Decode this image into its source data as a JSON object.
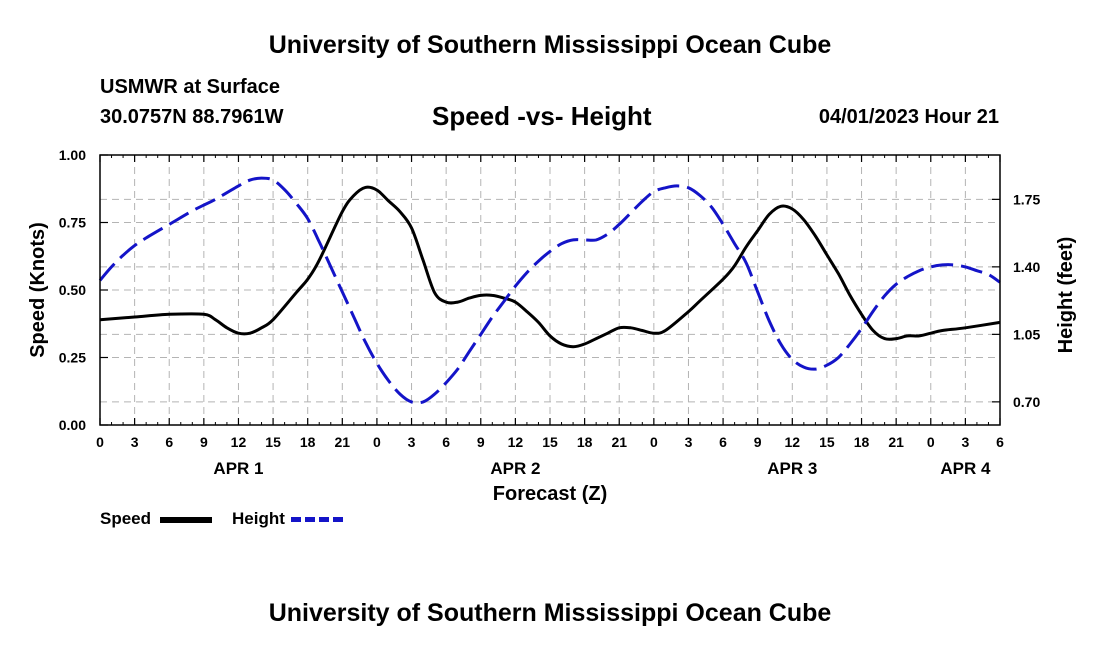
{
  "header": {
    "title": "University of Southern Mississippi Ocean Cube",
    "station": "USMWR at Surface",
    "coords": "30.0757N  88.7961W",
    "subtitle": "Speed -vs- Height",
    "datetime": "04/01/2023 Hour 21"
  },
  "footer": {
    "title": "University of Southern Mississippi Ocean Cube"
  },
  "legend": {
    "speed_label": "Speed",
    "height_label": "Height"
  },
  "colors": {
    "speed": "#000000",
    "height": "#1414c8",
    "grid": "#b4b4b4"
  },
  "chart_data": {
    "type": "line",
    "xlabel": "Forecast (Z)",
    "ylabel_left": "Speed (Knots)",
    "ylabel_right": "Height (feet)",
    "x_unit": "hours from APR 1 00Z",
    "xlim": [
      0,
      78
    ],
    "ylim_left": [
      0,
      1
    ],
    "ylim_right": [
      0.58,
      1.98
    ],
    "x_ticks": [
      0,
      3,
      6,
      9,
      12,
      15,
      18,
      21,
      24,
      27,
      30,
      33,
      36,
      39,
      42,
      45,
      48,
      51,
      54,
      57,
      60,
      63,
      66,
      69,
      72,
      75,
      78
    ],
    "x_tick_labels": [
      "0",
      "3",
      "6",
      "9",
      "12",
      "15",
      "18",
      "21",
      "0",
      "3",
      "6",
      "9",
      "12",
      "15",
      "18",
      "21",
      "0",
      "3",
      "6",
      "9",
      "12",
      "15",
      "18",
      "21",
      "0",
      "3",
      "6"
    ],
    "y_ticks_left": [
      0,
      0.25,
      0.5,
      0.75,
      1
    ],
    "y_tick_labels_left": [
      "0.00",
      "0.25",
      "0.50",
      "0.75",
      "1.00"
    ],
    "y_ticks_right": [
      0.7,
      1.05,
      1.4,
      1.75
    ],
    "y_tick_labels_right": [
      "0.70",
      "1.05",
      "1.40",
      "1.75"
    ],
    "day_labels": [
      {
        "x": 12,
        "label": "APR 1"
      },
      {
        "x": 36,
        "label": "APR 2"
      },
      {
        "x": 60,
        "label": "APR 3"
      },
      {
        "x": 75,
        "label": "APR 4"
      }
    ],
    "grid": true,
    "series": [
      {
        "name": "Speed",
        "axis": "left",
        "style": "solid",
        "x": [
          0,
          3,
          6,
          9,
          10,
          11,
          12,
          13,
          14,
          15,
          17,
          18,
          19,
          21,
          22,
          23,
          24,
          25,
          26,
          27,
          28,
          29,
          30,
          31,
          32,
          33,
          34,
          35,
          36,
          37,
          38,
          39,
          40,
          41,
          42,
          43,
          44,
          45,
          46,
          47,
          48,
          49,
          51,
          52,
          54,
          55,
          56,
          57,
          58,
          59,
          60,
          61,
          62,
          63,
          64,
          65,
          66,
          67,
          68,
          69,
          70,
          71,
          72,
          73,
          75,
          78
        ],
        "values": [
          0.39,
          0.4,
          0.41,
          0.41,
          0.39,
          0.36,
          0.34,
          0.34,
          0.36,
          0.39,
          0.49,
          0.54,
          0.61,
          0.79,
          0.85,
          0.88,
          0.87,
          0.83,
          0.79,
          0.73,
          0.61,
          0.49,
          0.455,
          0.455,
          0.47,
          0.48,
          0.48,
          0.47,
          0.455,
          0.42,
          0.38,
          0.33,
          0.3,
          0.29,
          0.3,
          0.32,
          0.34,
          0.36,
          0.36,
          0.35,
          0.34,
          0.35,
          0.42,
          0.46,
          0.54,
          0.59,
          0.66,
          0.72,
          0.78,
          0.81,
          0.8,
          0.76,
          0.7,
          0.63,
          0.56,
          0.48,
          0.41,
          0.35,
          0.32,
          0.32,
          0.33,
          0.33,
          0.34,
          0.35,
          0.36,
          0.38
        ]
      },
      {
        "name": "Height",
        "axis": "right",
        "style": "dashed",
        "x": [
          0,
          1,
          2,
          3,
          4,
          6,
          8,
          9,
          10,
          12,
          13,
          14,
          15,
          16,
          17,
          18,
          19,
          20,
          21,
          22,
          23,
          24,
          25,
          26,
          27,
          28,
          29,
          30,
          31,
          32,
          33,
          34,
          35,
          36,
          37,
          38,
          39,
          40,
          41,
          42,
          43,
          44,
          45,
          46,
          47,
          48,
          49,
          50,
          51,
          52,
          53,
          54,
          55,
          56,
          57,
          58,
          59,
          60,
          61,
          62,
          63,
          64,
          65,
          66,
          67,
          68,
          69,
          70,
          71,
          72,
          73,
          74,
          75,
          76,
          77,
          78
        ],
        "values": [
          1.33,
          1.4,
          1.46,
          1.51,
          1.55,
          1.62,
          1.69,
          1.72,
          1.75,
          1.82,
          1.85,
          1.86,
          1.85,
          1.8,
          1.73,
          1.65,
          1.53,
          1.4,
          1.27,
          1.14,
          1.01,
          0.9,
          0.81,
          0.74,
          0.7,
          0.7,
          0.74,
          0.8,
          0.87,
          0.96,
          1.05,
          1.14,
          1.22,
          1.3,
          1.37,
          1.43,
          1.48,
          1.52,
          1.54,
          1.54,
          1.54,
          1.57,
          1.62,
          1.68,
          1.74,
          1.79,
          1.81,
          1.82,
          1.81,
          1.77,
          1.71,
          1.62,
          1.52,
          1.42,
          1.27,
          1.12,
          1.0,
          0.92,
          0.88,
          0.87,
          0.89,
          0.93,
          1.0,
          1.08,
          1.17,
          1.25,
          1.31,
          1.35,
          1.38,
          1.4,
          1.41,
          1.41,
          1.4,
          1.38,
          1.36,
          1.32
        ]
      }
    ]
  }
}
